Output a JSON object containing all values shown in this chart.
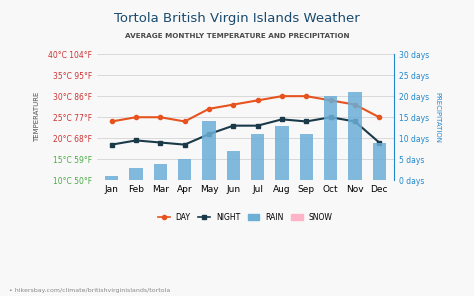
{
  "title": "Tortola British Virgin Islands Weather",
  "subtitle": "AVERAGE MONTHLY TEMPERATURE AND PRECIPITATION",
  "months": [
    "Jan",
    "Feb",
    "Mar",
    "Apr",
    "May",
    "Jun",
    "Jul",
    "Aug",
    "Sep",
    "Oct",
    "Nov",
    "Dec"
  ],
  "day_temp": [
    24,
    25,
    25,
    24,
    27,
    28,
    29,
    30,
    30,
    29,
    28,
    25
  ],
  "night_temp": [
    18.5,
    19.5,
    19,
    18.5,
    21,
    23,
    23,
    24.5,
    24,
    25,
    24,
    19
  ],
  "rain_days": [
    1,
    3,
    4,
    5,
    14,
    7,
    11,
    13,
    11,
    20,
    21,
    9
  ],
  "temp_ylim": [
    10,
    40
  ],
  "precip_ylim": [
    0,
    30
  ],
  "temp_yticks": [
    10,
    15,
    20,
    25,
    30,
    35,
    40
  ],
  "temp_ytick_labels": [
    "10°C 50°F",
    "15°C 59°F",
    "20°C 68°F",
    "25°C 77°F",
    "30°C 86°F",
    "35°C 95°F",
    "40°C 104°F"
  ],
  "precip_yticks": [
    0,
    5,
    10,
    15,
    20,
    25,
    30
  ],
  "precip_ytick_labels": [
    "0 days",
    "5 days",
    "10 days",
    "15 days",
    "20 days",
    "25 days",
    "30 days"
  ],
  "bar_color": "#6baed6",
  "day_color": "#e6531e",
  "night_color": "#1a3a4a",
  "title_color": "#1a4a6e",
  "subtitle_color": "#4a4a4a",
  "tick_colors": [
    "#4aaa44",
    "#4aaa44",
    "#cc3333",
    "#cc3333",
    "#cc3333",
    "#cc3333",
    "#cc3333"
  ],
  "bg_color": "#f8f8f8",
  "grid_color": "#cccccc",
  "watermark": "hikersbay.com/climate/britishvirginislands/tortola",
  "ylabel_left": "TEMPERATURE",
  "ylabel_right": "PRECIPITATION",
  "rain_axis_color": "#2288cc",
  "snow_color": "#ffb3c6"
}
